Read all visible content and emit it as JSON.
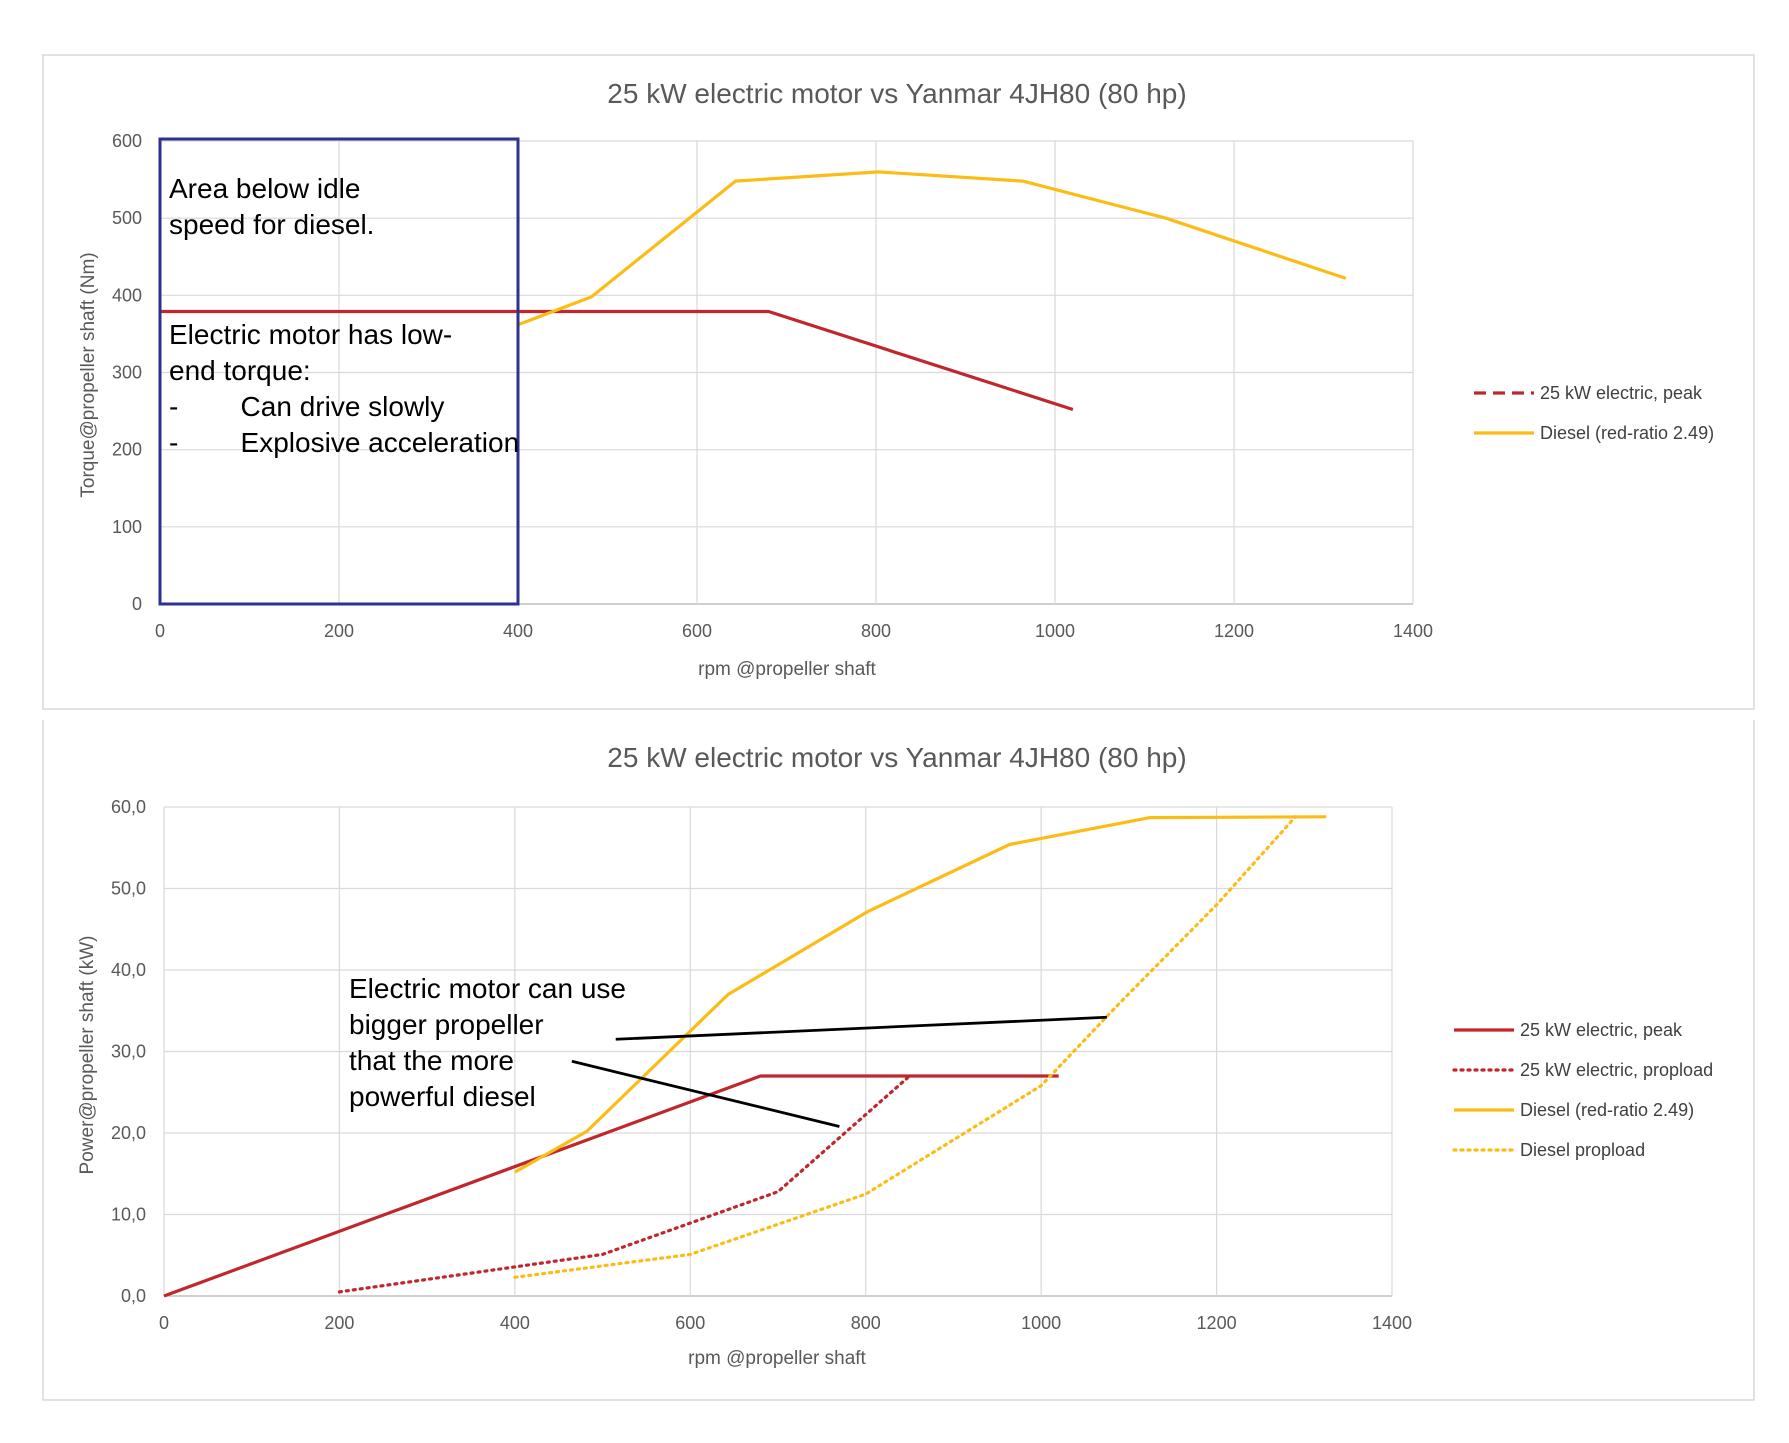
{
  "colors": {
    "electric": "#c0272d",
    "diesel": "#fbbc16",
    "idle_box": "#2e3192",
    "pointer": "#000000"
  },
  "chart_data": [
    {
      "type": "line",
      "title": "25 kW electric motor vs Yanmar 4JH80 (80 hp)",
      "xlabel": "rpm @propeller shaft",
      "ylabel": "Torque@propeller shaft (Nm)",
      "xlim": [
        0,
        1400
      ],
      "ylim": [
        0,
        600
      ],
      "x_ticks": [
        "0",
        "200",
        "400",
        "600",
        "800",
        "1000",
        "1200",
        "1400"
      ],
      "y_ticks": [
        "0",
        "100",
        "200",
        "300",
        "400",
        "500",
        "600"
      ],
      "grid": true,
      "legend_position": "right",
      "series": [
        {
          "name": "25 kW electric, peak",
          "color": "#c0272d",
          "style": "solid",
          "legend_style": "dashed",
          "points": [
            [
              0,
              379
            ],
            [
              680,
              379
            ],
            [
              1020,
              252
            ]
          ]
        },
        {
          "name": "Diesel (red-ratio 2.49)",
          "color": "#fbbc16",
          "style": "solid",
          "legend_style": "solid",
          "points": [
            [
              400,
              362
            ],
            [
              482,
              398
            ],
            [
              643,
              548
            ],
            [
              803,
              560
            ],
            [
              964,
              548
            ],
            [
              1124,
              500
            ],
            [
              1325,
              422
            ]
          ]
        }
      ],
      "annotation_box": {
        "x_range": [
          0,
          400
        ],
        "y_range": [
          0,
          600
        ],
        "lines": [
          "Area below idle",
          "speed for diesel.",
          "",
          "Electric motor has low-",
          "end torque:",
          "-        Can drive slowly",
          "-        Explosive acceleration"
        ]
      }
    },
    {
      "type": "line",
      "title": "25 kW electric motor vs Yanmar 4JH80 (80 hp)",
      "xlabel": "rpm @propeller shaft",
      "ylabel": "Power@propeller shaft (kW)",
      "xlim": [
        0,
        1400
      ],
      "ylim": [
        0,
        60
      ],
      "x_ticks": [
        "0",
        "200",
        "400",
        "600",
        "800",
        "1000",
        "1200",
        "1400"
      ],
      "y_ticks": [
        "0,0",
        "10,0",
        "20,0",
        "30,0",
        "40,0",
        "50,0",
        "60,0"
      ],
      "grid": true,
      "legend_position": "right",
      "series": [
        {
          "name": "25 kW electric, peak",
          "color": "#c0272d",
          "style": "solid",
          "points": [
            [
              0,
              0
            ],
            [
              680,
              27
            ],
            [
              1020,
              27
            ]
          ]
        },
        {
          "name": "25 kW electric, propload",
          "color": "#c0272d",
          "style": "dotted",
          "points": [
            [
              200,
              0.5
            ],
            [
              500,
              5.1
            ],
            [
              700,
              12.8
            ],
            [
              850,
              27
            ]
          ]
        },
        {
          "name": "Diesel (red-ratio 2.49)",
          "color": "#fbbc16",
          "style": "solid",
          "points": [
            [
              400,
              15.2
            ],
            [
              482,
              20.2
            ],
            [
              643,
              37.0
            ],
            [
              803,
              47.2
            ],
            [
              964,
              55.4
            ],
            [
              1124,
              58.7
            ],
            [
              1325,
              58.8
            ]
          ]
        },
        {
          "name": "Diesel propload",
          "color": "#fbbc16",
          "style": "dotted",
          "points": [
            [
              400,
              2.3
            ],
            [
              600,
              5.1
            ],
            [
              800,
              12.5
            ],
            [
              1000,
              25.8
            ],
            [
              1090,
              36.0
            ],
            [
              1200,
              48.0
            ],
            [
              1290,
              58.8
            ]
          ]
        }
      ],
      "annotation": {
        "lines": [
          "Electric motor can use",
          "bigger propeller",
          "that the more",
          "powerful diesel"
        ],
        "pointers": [
          {
            "from": [
              515,
              31.5
            ],
            "to": [
              1075,
              34.2
            ]
          },
          {
            "from": [
              465,
              28.8
            ],
            "to": [
              770,
              20.8
            ]
          }
        ]
      }
    }
  ]
}
